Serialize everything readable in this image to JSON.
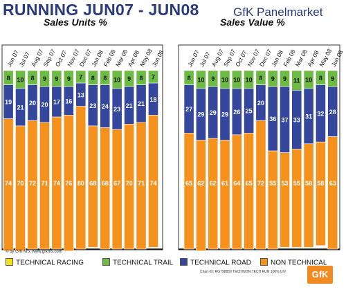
{
  "header": {
    "title": "RUNNING JUN07 - JUN08",
    "brand": "GfK Panelmarket",
    "copyright": "© by GfK MS, www.gfkms.com",
    "chart_id": "Chart-ID: RG798839 TECH/NON TECH RUN 100% U/V",
    "logo_text": "GfK"
  },
  "colors": {
    "TECHNICAL RACING": "#f2e21e",
    "TECHNICAL TRAIL": "#6dbb45",
    "TECHNICAL ROAD": "#34479d",
    "NON TECHNICAL": "#f5921e"
  },
  "legend": [
    "TECHNICAL RACING",
    "TECHNICAL TRAIL",
    "TECHNICAL ROAD",
    "NON TECHNICAL"
  ],
  "chart_data": [
    {
      "type": "bar",
      "stacked": true,
      "normalized": "100%",
      "title": "Sales Units %",
      "categories": [
        "Jun 07",
        "Jul 07",
        "Aug 07",
        "Sep 07",
        "Oct 07",
        "Nov 07",
        "Dec 07",
        "Jan 08",
        "Feb 08",
        "Mar 08",
        "Apr 08",
        "May 08",
        "Jun 08"
      ],
      "series": [
        {
          "name": "NON TECHNICAL",
          "values": [
            74,
            70,
            72,
            71,
            74,
            76,
            80,
            68,
            68,
            67,
            70,
            71,
            74
          ]
        },
        {
          "name": "TECHNICAL ROAD",
          "values": [
            19,
            21,
            20,
            20,
            17,
            16,
            13,
            23,
            24,
            23,
            21,
            21,
            18
          ]
        },
        {
          "name": "TECHNICAL TRAIL",
          "values": [
            8,
            10,
            8,
            9,
            9,
            9,
            7,
            8,
            8,
            10,
            9,
            8,
            7
          ]
        },
        {
          "name": "TECHNICAL RACING",
          "values": [
            0,
            0,
            0,
            0,
            0,
            0,
            0,
            0,
            0,
            0,
            0,
            0,
            0
          ]
        }
      ],
      "ylim": [
        0,
        100
      ]
    },
    {
      "type": "bar",
      "stacked": true,
      "normalized": "100%",
      "title": "Sales Value %",
      "categories": [
        "Jun 07",
        "Jul 07",
        "Aug 07",
        "Sep 07",
        "Oct 07",
        "Nov 07",
        "Dec 07",
        "Jan 08",
        "Feb 08",
        "Mar 08",
        "Apr 08",
        "May 08",
        "Jun 08"
      ],
      "series": [
        {
          "name": "NON TECHNICAL",
          "values": [
            65,
            62,
            62,
            61,
            64,
            65,
            72,
            55,
            53,
            55,
            58,
            58,
            63
          ]
        },
        {
          "name": "TECHNICAL ROAD",
          "values": [
            27,
            29,
            29,
            29,
            26,
            25,
            20,
            36,
            37,
            33,
            31,
            32,
            28
          ]
        },
        {
          "name": "TECHNICAL TRAIL",
          "values": [
            8,
            10,
            9,
            10,
            10,
            10,
            8,
            9,
            9,
            11,
            10,
            8,
            9
          ]
        },
        {
          "name": "TECHNICAL RACING",
          "values": [
            0,
            0,
            0,
            0,
            0,
            0,
            0,
            0,
            0,
            0,
            0,
            0,
            0
          ]
        }
      ],
      "ylim": [
        0,
        100
      ]
    }
  ]
}
